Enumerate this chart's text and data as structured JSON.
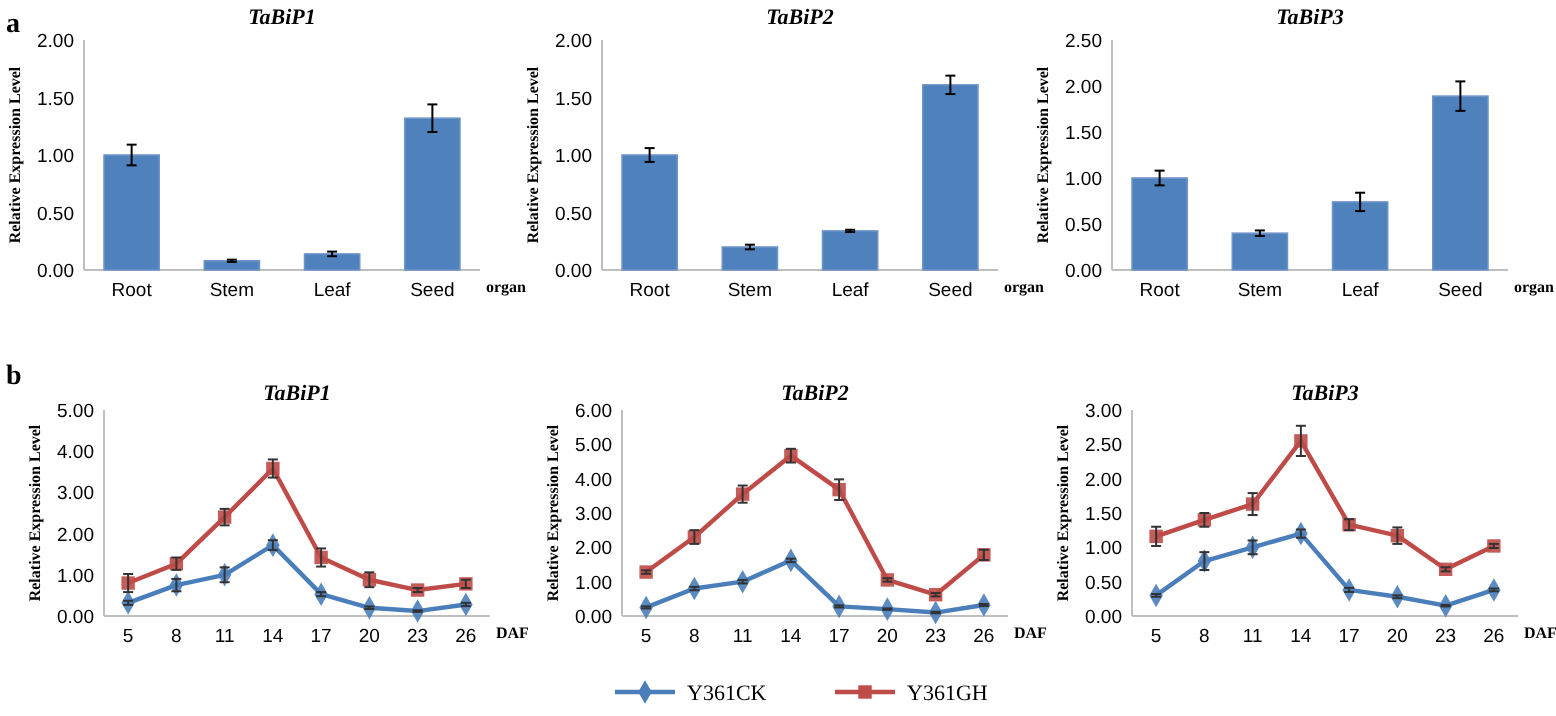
{
  "chart_data": [
    {
      "type": "bar",
      "title": "TaBiP1",
      "ylabel": "Relative Expression Level",
      "xlabel": "organ",
      "annotations": [
        "a"
      ],
      "categories": [
        "Root",
        "Stem",
        "Leaf",
        "Seed"
      ],
      "values": [
        1.0,
        0.08,
        0.14,
        1.32
      ],
      "errors": [
        0.09,
        0.01,
        0.02,
        0.12
      ],
      "color": "#4f81bd",
      "ylim": [
        0,
        2
      ],
      "yticks": [
        {
          "value": 0,
          "label": "0.00"
        },
        {
          "value": 0.5,
          "label": "0.50"
        },
        {
          "value": 1,
          "label": "1.00"
        },
        {
          "value": 1.5,
          "label": "1.50"
        },
        {
          "value": 2,
          "label": "2.00"
        }
      ],
      "grid": false
    },
    {
      "type": "bar",
      "title": "TaBiP2",
      "ylabel": "Relative Expression Level",
      "xlabel": "organ",
      "categories": [
        "Root",
        "Stem",
        "Leaf",
        "Seed"
      ],
      "values": [
        1.0,
        0.2,
        0.34,
        1.61
      ],
      "errors": [
        0.06,
        0.02,
        0.01,
        0.08
      ],
      "color": "#4f81bd",
      "ylim": [
        0,
        2
      ],
      "yticks": [
        {
          "value": 0,
          "label": "0.00"
        },
        {
          "value": 0.5,
          "label": "0.50"
        },
        {
          "value": 1,
          "label": "1.00"
        },
        {
          "value": 1.5,
          "label": "1.50"
        },
        {
          "value": 2,
          "label": "2.00"
        }
      ],
      "grid": false
    },
    {
      "type": "bar",
      "title": "TaBiP3",
      "ylabel": "Relative Expression Level",
      "xlabel": "organ",
      "categories": [
        "Root",
        "Stem",
        "Leaf",
        "Seed"
      ],
      "values": [
        1.0,
        0.4,
        0.74,
        1.89
      ],
      "errors": [
        0.08,
        0.03,
        0.1,
        0.16
      ],
      "color": "#4f81bd",
      "ylim": [
        0,
        2.5
      ],
      "yticks": [
        {
          "value": 0,
          "label": "0.00"
        },
        {
          "value": 0.5,
          "label": "0.50"
        },
        {
          "value": 1,
          "label": "1.00"
        },
        {
          "value": 1.5,
          "label": "1.50"
        },
        {
          "value": 2,
          "label": "2.00"
        },
        {
          "value": 2.5,
          "label": "2.50"
        }
      ],
      "grid": false
    },
    {
      "type": "line",
      "title": "TaBiP1",
      "ylabel": "Relative Expression Level",
      "xlabel": "DAF",
      "annotations": [
        "b"
      ],
      "categories": [
        "5",
        "8",
        "11",
        "14",
        "17",
        "20",
        "23",
        "26"
      ],
      "ylim": [
        0,
        5
      ],
      "yticks": [
        {
          "value": 0,
          "label": "0.00"
        },
        {
          "value": 1,
          "label": "1.00"
        },
        {
          "value": 2,
          "label": "2.00"
        },
        {
          "value": 3,
          "label": "3.00"
        },
        {
          "value": 4,
          "label": "4.00"
        },
        {
          "value": 5,
          "label": "5.00"
        }
      ],
      "grid": false,
      "series": [
        {
          "color": "#4a7ebb",
          "marker": "diamond",
          "values": [
            0.32,
            0.75,
            1.0,
            1.72,
            0.53,
            0.2,
            0.12,
            0.28
          ],
          "errors": [
            0.05,
            0.15,
            0.18,
            0.12,
            0.05,
            0.03,
            0.02,
            0.04
          ]
        },
        {
          "color": "#be4b48",
          "marker": "square",
          "values": [
            0.8,
            1.27,
            2.4,
            3.58,
            1.42,
            0.88,
            0.63,
            0.78
          ],
          "errors": [
            0.22,
            0.15,
            0.2,
            0.22,
            0.22,
            0.18,
            0.05,
            0.1
          ]
        }
      ]
    },
    {
      "type": "line",
      "title": "TaBiP2",
      "ylabel": "Relative Expression Level",
      "xlabel": "DAF",
      "legend": "bottom",
      "categories": [
        "5",
        "8",
        "11",
        "14",
        "17",
        "20",
        "23",
        "26"
      ],
      "ylim": [
        0,
        6
      ],
      "yticks": [
        {
          "value": 0,
          "label": "0.00"
        },
        {
          "value": 1,
          "label": "1.00"
        },
        {
          "value": 2,
          "label": "2.00"
        },
        {
          "value": 3,
          "label": "3.00"
        },
        {
          "value": 4,
          "label": "4.00"
        },
        {
          "value": 5,
          "label": "5.00"
        },
        {
          "value": 6,
          "label": "6.00"
        }
      ],
      "grid": false,
      "series": [
        {
          "name": "Y361CK",
          "color": "#4a7ebb",
          "marker": "diamond",
          "values": [
            0.25,
            0.8,
            1.0,
            1.62,
            0.28,
            0.2,
            0.1,
            0.32
          ],
          "errors": [
            0.03,
            0.05,
            0.05,
            0.05,
            0.03,
            0.02,
            0.02,
            0.03
          ]
        },
        {
          "name": "Y361GH",
          "color": "#be4b48",
          "marker": "square",
          "values": [
            1.28,
            2.3,
            3.55,
            4.67,
            3.68,
            1.05,
            0.62,
            1.78
          ],
          "errors": [
            0.05,
            0.2,
            0.25,
            0.2,
            0.3,
            0.05,
            0.05,
            0.15
          ]
        }
      ]
    },
    {
      "type": "line",
      "title": "TaBiP3",
      "ylabel": "Relative Expression Level",
      "xlabel": "DAF",
      "categories": [
        "5",
        "8",
        "11",
        "14",
        "17",
        "20",
        "23",
        "26"
      ],
      "ylim": [
        0,
        3
      ],
      "yticks": [
        {
          "value": 0,
          "label": "0.00"
        },
        {
          "value": 0.5,
          "label": "0.50"
        },
        {
          "value": 1,
          "label": "1.00"
        },
        {
          "value": 1.5,
          "label": "1.50"
        },
        {
          "value": 2,
          "label": "2.00"
        },
        {
          "value": 2.5,
          "label": "2.50"
        },
        {
          "value": 3,
          "label": "3.00"
        }
      ],
      "grid": false,
      "series": [
        {
          "color": "#4a7ebb",
          "marker": "diamond",
          "values": [
            0.3,
            0.8,
            1.0,
            1.2,
            0.38,
            0.28,
            0.15,
            0.38
          ],
          "errors": [
            0.02,
            0.13,
            0.1,
            0.06,
            0.03,
            0.02,
            0.01,
            0.02
          ]
        },
        {
          "color": "#be4b48",
          "marker": "square",
          "values": [
            1.16,
            1.4,
            1.63,
            2.55,
            1.33,
            1.17,
            0.68,
            1.02
          ],
          "errors": [
            0.14,
            0.1,
            0.16,
            0.22,
            0.08,
            0.12,
            0.03,
            0.03
          ]
        }
      ]
    }
  ]
}
